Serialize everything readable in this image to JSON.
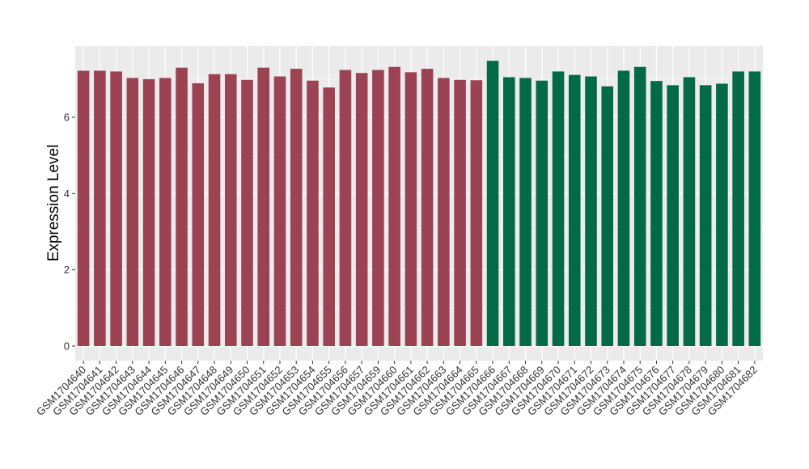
{
  "chart_data": {
    "type": "bar",
    "title": "",
    "xlabel": "",
    "ylabel": "Expression Level",
    "ylim": [
      0,
      7.8
    ],
    "yticks": [
      0,
      2,
      4,
      6
    ],
    "ytick_labels": [
      "0",
      "2",
      "4",
      "6"
    ],
    "grid": true,
    "legend": "none",
    "colors": {
      "group1": "#9b4352",
      "group2": "#026a46",
      "panel": "#ebebeb",
      "grid": "#ffffff"
    },
    "categories": [
      "GSM1704640",
      "GSM1704641",
      "GSM1704642",
      "GSM1704643",
      "GSM1704644",
      "GSM1704645",
      "GSM1704646",
      "GSM1704647",
      "GSM1704648",
      "GSM1704649",
      "GSM1704650",
      "GSM1704651",
      "GSM1704652",
      "GSM1704653",
      "GSM1704654",
      "GSM1704655",
      "GSM1704656",
      "GSM1704657",
      "GSM1704659",
      "GSM1704660",
      "GSM1704661",
      "GSM1704662",
      "GSM1704663",
      "GSM1704664",
      "GSM1704665",
      "GSM1704666",
      "GSM1704667",
      "GSM1704668",
      "GSM1704669",
      "GSM1704670",
      "GSM1704671",
      "GSM1704672",
      "GSM1704673",
      "GSM1704674",
      "GSM1704675",
      "GSM1704676",
      "GSM1704677",
      "GSM1704678",
      "GSM1704679",
      "GSM1704680",
      "GSM1704681",
      "GSM1704682"
    ],
    "values": [
      7.22,
      7.22,
      7.2,
      7.03,
      7.0,
      7.03,
      7.3,
      6.89,
      7.13,
      7.13,
      6.98,
      7.3,
      7.07,
      7.27,
      6.96,
      6.78,
      7.24,
      7.16,
      7.24,
      7.32,
      7.18,
      7.27,
      7.03,
      6.98,
      6.97,
      7.48,
      7.05,
      7.03,
      6.96,
      7.2,
      7.11,
      7.07,
      6.81,
      7.22,
      7.32,
      6.95,
      6.84,
      7.05,
      6.84,
      6.88,
      7.2,
      7.2
    ],
    "group_of_bar": [
      1,
      1,
      1,
      1,
      1,
      1,
      1,
      1,
      1,
      1,
      1,
      1,
      1,
      1,
      1,
      1,
      1,
      1,
      1,
      1,
      1,
      1,
      1,
      1,
      1,
      2,
      2,
      2,
      2,
      2,
      2,
      2,
      2,
      2,
      2,
      2,
      2,
      2,
      2,
      2,
      2,
      2
    ]
  }
}
